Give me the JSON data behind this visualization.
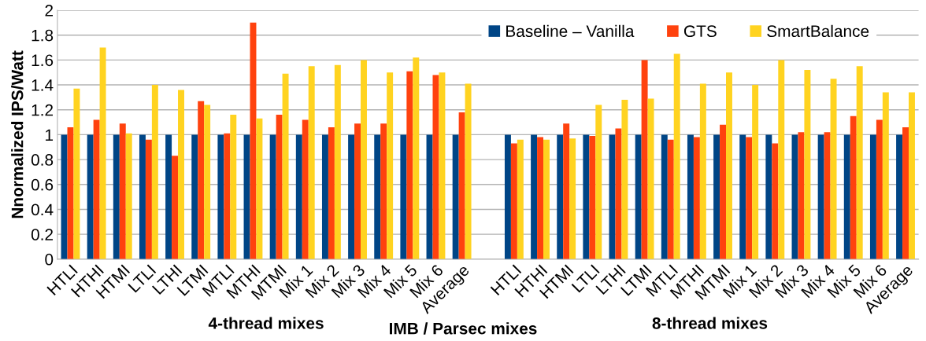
{
  "chart_data": {
    "type": "bar",
    "xlabel": "IMB / Parsec mixes",
    "ylabel": "Nnormalized IPS/Watt",
    "categories": [
      "HTLI",
      "HTHI",
      "HTMI",
      "LTLI",
      "LTHI",
      "LTMI",
      "MTLI",
      "MTHI",
      "MTMI",
      "Mix 1",
      "Mix 2",
      "Mix 3",
      "Mix 4",
      "Mix 5",
      "Mix 6",
      "Average",
      null,
      "HTLI",
      "HTHI",
      "HTMI",
      "LTLI",
      "LTHI",
      "LTMI",
      "MTLI",
      "MTHI",
      "MTMI",
      "Mix 1",
      "Mix 2",
      "Mix 3",
      "Mix 4",
      "Mix 5",
      "Mix 6",
      "Average"
    ],
    "series": [
      {
        "name": "Baseline – Vanilla",
        "color": "#004586",
        "values": [
          1,
          1,
          1,
          1,
          1,
          1,
          1,
          1,
          1,
          1,
          1,
          1,
          1,
          1,
          1,
          1,
          null,
          1,
          1,
          1,
          1,
          1,
          1,
          1,
          1,
          1,
          1,
          1,
          1,
          1,
          1,
          1,
          1
        ]
      },
      {
        "name": "GTS",
        "color": "#ff420e",
        "values": [
          1.06,
          1.12,
          1.09,
          0.96,
          0.83,
          1.27,
          1.01,
          1.9,
          1.16,
          1.12,
          1.06,
          1.09,
          1.09,
          1.51,
          1.48,
          1.18,
          null,
          0.93,
          0.98,
          1.09,
          0.99,
          1.05,
          1.6,
          0.96,
          0.98,
          1.08,
          0.98,
          0.93,
          1.02,
          1.02,
          1.15,
          1.12,
          1.06
        ]
      },
      {
        "name": "SmartBalance",
        "color": "#ffd320",
        "values": [
          1.37,
          1.7,
          1.01,
          1.4,
          1.36,
          1.24,
          1.16,
          1.13,
          1.49,
          1.55,
          1.56,
          1.6,
          1.5,
          1.62,
          1.5,
          1.41,
          null,
          0.96,
          0.96,
          0.97,
          1.24,
          1.28,
          1.29,
          1.65,
          1.41,
          1.5,
          1.4,
          1.6,
          1.52,
          1.45,
          1.55,
          1.34,
          1.34
        ]
      }
    ],
    "ylim": [
      0,
      2
    ],
    "yticks": [
      0,
      0.2,
      0.4,
      0.6,
      0.8,
      1,
      1.2,
      1.4,
      1.6,
      1.8,
      2
    ],
    "grid": "y",
    "legend": "top right",
    "annotations": [
      "4-thread mixes",
      "8-thread mixes"
    ]
  }
}
